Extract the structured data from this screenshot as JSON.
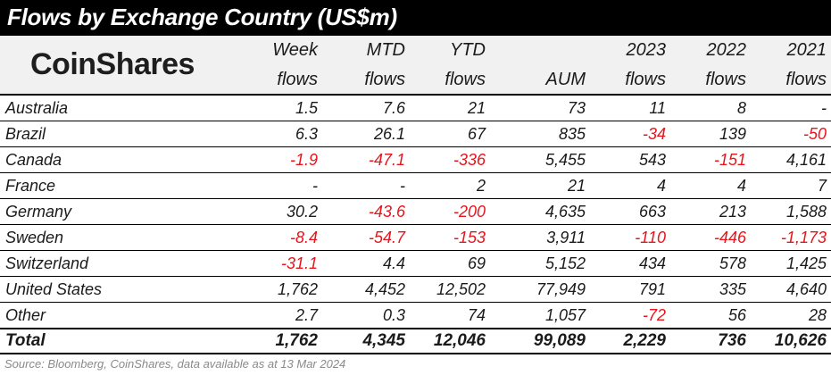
{
  "title": "Flows by Exchange Country (US$m)",
  "logo": "CoinShares",
  "source": "Source: Bloomberg, CoinShares, data available as at 13 Mar 2024",
  "colors": {
    "negative": "#e8141b",
    "title_bg": "#000000",
    "header_bg": "#f1f1f1"
  },
  "chart_data": {
    "type": "table",
    "columns": [
      {
        "line1": "Week",
        "line2": "flows"
      },
      {
        "line1": "MTD",
        "line2": "flows"
      },
      {
        "line1": "YTD",
        "line2": "flows"
      },
      {
        "line1": "",
        "line2": "AUM"
      },
      {
        "line1": "2023",
        "line2": "flows"
      },
      {
        "line1": "2022",
        "line2": "flows"
      },
      {
        "line1": "2021",
        "line2": "flows"
      }
    ],
    "rows": [
      {
        "label": "Australia",
        "values": [
          "1.5",
          "7.6",
          "21",
          "73",
          "11",
          "8",
          "-"
        ]
      },
      {
        "label": "Brazil",
        "values": [
          "6.3",
          "26.1",
          "67",
          "835",
          "-34",
          "139",
          "-50"
        ]
      },
      {
        "label": "Canada",
        "values": [
          "-1.9",
          "-47.1",
          "-336",
          "5,455",
          "543",
          "-151",
          "4,161"
        ]
      },
      {
        "label": "France",
        "values": [
          "-",
          "-",
          "2",
          "21",
          "4",
          "4",
          "7"
        ]
      },
      {
        "label": "Germany",
        "values": [
          "30.2",
          "-43.6",
          "-200",
          "4,635",
          "663",
          "213",
          "1,588"
        ]
      },
      {
        "label": "Sweden",
        "values": [
          "-8.4",
          "-54.7",
          "-153",
          "3,911",
          "-110",
          "-446",
          "-1,173"
        ]
      },
      {
        "label": "Switzerland",
        "values": [
          "-31.1",
          "4.4",
          "69",
          "5,152",
          "434",
          "578",
          "1,425"
        ]
      },
      {
        "label": "United States",
        "values": [
          "1,762",
          "4,452",
          "12,502",
          "77,949",
          "791",
          "335",
          "4,640"
        ]
      },
      {
        "label": "Other",
        "values": [
          "2.7",
          "0.3",
          "74",
          "1,057",
          "-72",
          "56",
          "28"
        ]
      }
    ],
    "total": {
      "label": "Total",
      "values": [
        "1,762",
        "4,345",
        "12,046",
        "99,089",
        "2,229",
        "736",
        "10,626"
      ]
    }
  }
}
